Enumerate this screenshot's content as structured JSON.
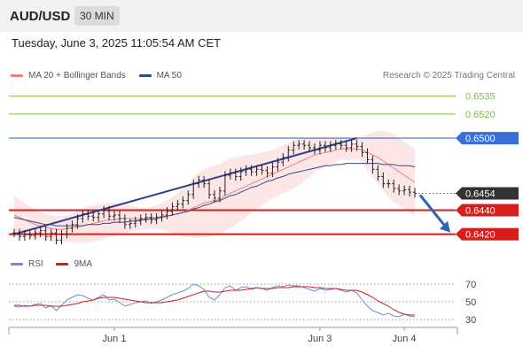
{
  "header": {
    "symbol": "AUD/USD",
    "timeframe": "30 MIN",
    "datetime": "Tuesday, June 3, 2025 11:05:54 AM CET"
  },
  "legend": {
    "ma20_label": "MA 20 + Bollinger Bands",
    "ma50_label": "MA 50",
    "copyright": "Research © 2025 Trading Central"
  },
  "rsi_legend": {
    "rsi_label": "RSI",
    "ma_label": "9MA"
  },
  "colors": {
    "ma20": "#f08080",
    "ma50": "#2e4b8f",
    "bollinger_fill": "#fde0e0",
    "resistance": "#7cbf3c",
    "pivot": "#3a6fd8",
    "support": "#d81d1d",
    "current_price": "#333333",
    "trendline": "#2e3f8f",
    "arrow": "#2f64b0",
    "rsi": "#6b8fd6",
    "rsi_ma": "#d81d1d",
    "candle": "#222222"
  },
  "chart_data": [
    {
      "type": "candlestick",
      "title": "AUD/USD",
      "ylim": [
        0.6405,
        0.6545
      ],
      "x_ticks": [
        "Jun 1",
        "Jun 3",
        "Jun 4"
      ],
      "levels": [
        {
          "value": 0.6535,
          "label": "0.6535",
          "kind": "resistance"
        },
        {
          "value": 0.652,
          "label": "0.6520",
          "kind": "resistance"
        },
        {
          "value": 0.65,
          "label": "0.6500",
          "kind": "pivot"
        },
        {
          "value": 0.6454,
          "label": "0.6454",
          "kind": "current"
        },
        {
          "value": 0.644,
          "label": "0.6440",
          "kind": "support"
        },
        {
          "value": 0.642,
          "label": "0.6420",
          "kind": "support"
        }
      ],
      "closes": [
        0.6421,
        0.6418,
        0.642,
        0.6419,
        0.6421,
        0.6423,
        0.6418,
        0.6421,
        0.6415,
        0.642,
        0.6425,
        0.6428,
        0.6433,
        0.6437,
        0.6435,
        0.6434,
        0.6437,
        0.644,
        0.6435,
        0.6436,
        0.6433,
        0.6428,
        0.6429,
        0.6431,
        0.6433,
        0.6434,
        0.6432,
        0.6434,
        0.6436,
        0.6439,
        0.6443,
        0.6445,
        0.6448,
        0.6453,
        0.6462,
        0.6465,
        0.6462,
        0.6453,
        0.645,
        0.6456,
        0.6469,
        0.6471,
        0.6468,
        0.6472,
        0.6474,
        0.6472,
        0.6474,
        0.6473,
        0.6471,
        0.6476,
        0.648,
        0.6484,
        0.649,
        0.6494,
        0.6495,
        0.6494,
        0.6492,
        0.649,
        0.6494,
        0.6492,
        0.6494,
        0.6495,
        0.6494,
        0.6492,
        0.6495,
        0.6493,
        0.6488,
        0.6482,
        0.6474,
        0.6468,
        0.6462,
        0.6462,
        0.6458,
        0.6456,
        0.6457,
        0.6455,
        0.6454
      ],
      "ma20": [
        0.6436,
        0.6434,
        0.6432,
        0.643,
        0.6428,
        0.6427,
        0.6426,
        0.6425,
        0.6424,
        0.6424,
        0.6425,
        0.6425,
        0.6426,
        0.6427,
        0.6428,
        0.6429,
        0.643,
        0.6431,
        0.6432,
        0.6432,
        0.6433,
        0.6433,
        0.6433,
        0.6433,
        0.6433,
        0.6433,
        0.6434,
        0.6434,
        0.6435,
        0.6435,
        0.6436,
        0.6437,
        0.6438,
        0.644,
        0.6442,
        0.6444,
        0.6446,
        0.6447,
        0.6448,
        0.6449,
        0.6452,
        0.6454,
        0.6456,
        0.6458,
        0.646,
        0.6462,
        0.6464,
        0.6466,
        0.6468,
        0.647,
        0.6472,
        0.6474,
        0.6476,
        0.6478,
        0.648,
        0.6482,
        0.6484,
        0.6486,
        0.6487,
        0.6488,
        0.6489,
        0.649,
        0.6491,
        0.6491,
        0.6491,
        0.6491,
        0.649,
        0.6488,
        0.6486,
        0.6484,
        0.6481,
        0.6478,
        0.6475,
        0.6472,
        0.6469,
        0.6466,
        0.6463
      ],
      "bb_upper": [
        0.6452,
        0.6449,
        0.6446,
        0.6443,
        0.644,
        0.6438,
        0.6437,
        0.6436,
        0.6435,
        0.6435,
        0.6436,
        0.6437,
        0.6439,
        0.6441,
        0.6443,
        0.6444,
        0.6445,
        0.6446,
        0.6446,
        0.6446,
        0.6446,
        0.6445,
        0.6444,
        0.6443,
        0.6442,
        0.6442,
        0.6443,
        0.6444,
        0.6446,
        0.6448,
        0.6451,
        0.6454,
        0.6458,
        0.6462,
        0.6467,
        0.6471,
        0.6474,
        0.6476,
        0.6477,
        0.6478,
        0.6481,
        0.6483,
        0.6484,
        0.6485,
        0.6486,
        0.6486,
        0.6487,
        0.6488,
        0.6489,
        0.649,
        0.6492,
        0.6494,
        0.6496,
        0.6498,
        0.6499,
        0.65,
        0.65,
        0.65,
        0.65,
        0.65,
        0.65,
        0.65,
        0.65,
        0.65,
        0.65,
        0.65,
        0.6501,
        0.6503,
        0.6505,
        0.6506,
        0.6506,
        0.6505,
        0.6503,
        0.65,
        0.6497,
        0.6494,
        0.6491
      ],
      "bb_lower": [
        0.642,
        0.6419,
        0.6418,
        0.6417,
        0.6416,
        0.6416,
        0.6415,
        0.6414,
        0.6413,
        0.6413,
        0.6414,
        0.6413,
        0.6413,
        0.6413,
        0.6413,
        0.6414,
        0.6415,
        0.6416,
        0.6418,
        0.6418,
        0.642,
        0.6421,
        0.6422,
        0.6423,
        0.6424,
        0.6424,
        0.6425,
        0.6424,
        0.6424,
        0.6422,
        0.6421,
        0.642,
        0.6418,
        0.6418,
        0.6417,
        0.6417,
        0.6418,
        0.6418,
        0.6419,
        0.642,
        0.6423,
        0.6425,
        0.6428,
        0.6431,
        0.6434,
        0.6438,
        0.6441,
        0.6444,
        0.6447,
        0.645,
        0.6452,
        0.6454,
        0.6456,
        0.6458,
        0.6461,
        0.6464,
        0.6468,
        0.6472,
        0.6474,
        0.6476,
        0.6478,
        0.648,
        0.6482,
        0.6482,
        0.6482,
        0.6482,
        0.6479,
        0.6473,
        0.6467,
        0.6462,
        0.6456,
        0.6451,
        0.6447,
        0.6444,
        0.6441,
        0.6438,
        0.6435
      ],
      "ma50": [
        0.6434,
        0.6433,
        0.6432,
        0.6431,
        0.643,
        0.6429,
        0.6428,
        0.6428,
        0.6427,
        0.6427,
        0.6427,
        0.6427,
        0.6427,
        0.6427,
        0.6428,
        0.6428,
        0.6428,
        0.6429,
        0.6429,
        0.643,
        0.643,
        0.643,
        0.6431,
        0.6431,
        0.6432,
        0.6432,
        0.6433,
        0.6433,
        0.6434,
        0.6435,
        0.6436,
        0.6437,
        0.6438,
        0.6439,
        0.6441,
        0.6442,
        0.6444,
        0.6445,
        0.6447,
        0.6448,
        0.645,
        0.6452,
        0.6453,
        0.6455,
        0.6457,
        0.6459,
        0.646,
        0.6462,
        0.6464,
        0.6465,
        0.6467,
        0.6468,
        0.647,
        0.6471,
        0.6472,
        0.6473,
        0.6474,
        0.6475,
        0.6476,
        0.6477,
        0.6477,
        0.6478,
        0.6478,
        0.6479,
        0.6479,
        0.6479,
        0.6479,
        0.6479,
        0.6479,
        0.6479,
        0.6478,
        0.6478,
        0.6478,
        0.6477,
        0.6477,
        0.6477,
        0.6476
      ],
      "trendline": {
        "from": [
          0,
          0.642
        ],
        "to": [
          65,
          0.65
        ]
      },
      "forecast_arrow": {
        "from": 0.6454,
        "to": 0.642
      }
    },
    {
      "type": "line",
      "title": "RSI",
      "ylim": [
        25,
        80
      ],
      "y_ticks": [
        70,
        50,
        30
      ],
      "rsi": [
        45,
        44,
        46,
        45,
        47,
        48,
        43,
        46,
        40,
        46,
        52,
        55,
        58,
        57,
        54,
        52,
        55,
        58,
        52,
        53,
        49,
        45,
        47,
        49,
        50,
        51,
        48,
        50,
        52,
        55,
        58,
        60,
        62,
        65,
        70,
        68,
        64,
        55,
        52,
        58,
        66,
        68,
        63,
        66,
        67,
        64,
        66,
        65,
        63,
        66,
        68,
        67,
        69,
        68,
        68,
        66,
        64,
        62,
        65,
        63,
        64,
        65,
        63,
        61,
        63,
        60,
        52,
        45,
        40,
        38,
        35,
        37,
        34,
        33,
        36,
        34,
        33
      ],
      "rsi_ma": [
        46,
        46,
        45,
        45,
        46,
        46,
        46,
        45,
        45,
        45,
        46,
        47,
        48,
        50,
        51,
        52,
        54,
        55,
        55,
        55,
        54,
        53,
        52,
        51,
        50,
        49,
        49,
        49,
        49,
        50,
        51,
        52,
        54,
        56,
        58,
        60,
        62,
        62,
        61,
        61,
        62,
        63,
        63,
        63,
        64,
        65,
        66,
        65,
        65,
        65,
        66,
        66,
        66,
        67,
        67,
        67,
        67,
        66,
        66,
        65,
        65,
        65,
        64,
        63,
        63,
        63,
        61,
        58,
        55,
        51,
        48,
        45,
        41,
        38,
        36,
        35,
        35
      ]
    }
  ]
}
